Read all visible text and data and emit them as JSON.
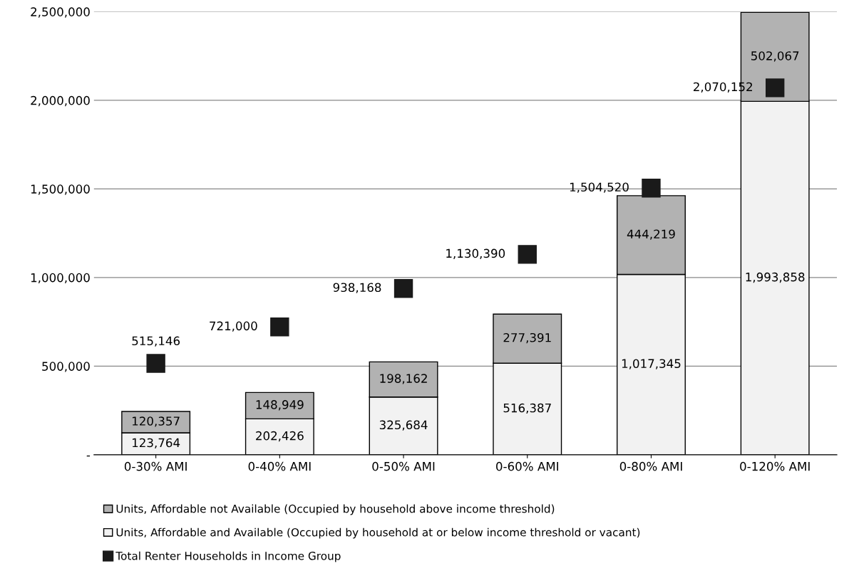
{
  "chart_data": {
    "type": "bar",
    "stacked": true,
    "categories": [
      "0-30% AMI",
      "0-40% AMI",
      "0-50% AMI",
      "0-60% AMI",
      "0-80% AMI",
      "0-120% AMI"
    ],
    "series": [
      {
        "name": "Units, Affordable and Available (Occupied by household at or below income threshold or vacant)",
        "color": "#f2f2f2",
        "values": [
          123764,
          202426,
          325684,
          516387,
          1017345,
          1993858
        ],
        "value_labels": [
          "123,764",
          "202,426",
          "325,684",
          "516,387",
          "1,017,345",
          "1,993,858"
        ]
      },
      {
        "name": "Units, Affordable not Available (Occupied by household above income threshold)",
        "color": "#b2b2b2",
        "values": [
          120357,
          148949,
          198162,
          277391,
          444219,
          502067
        ],
        "value_labels": [
          "120,357",
          "148,949",
          "198,162",
          "277,391",
          "444,219",
          "502,067"
        ]
      },
      {
        "name": "Total Renter Households in Income Group",
        "type": "scatter",
        "marker": "square",
        "color": "#1a1a1a",
        "values": [
          515146,
          721000,
          938168,
          1130390,
          1504520,
          2070152
        ],
        "value_labels": [
          "515,146",
          "721,000",
          "938,168",
          "1,130,390",
          "1,504,520",
          "2,070,152"
        ]
      }
    ],
    "ylim": [
      0,
      2500000
    ],
    "yticks": [
      {
        "value": 0,
        "label": "-"
      },
      {
        "value": 500000,
        "label": "500,000"
      },
      {
        "value": 1000000,
        "label": "1,000,000"
      },
      {
        "value": 1500000,
        "label": "1,500,000"
      },
      {
        "value": 2000000,
        "label": "2,000,000"
      },
      {
        "value": 2500000,
        "label": "2,500,000"
      }
    ],
    "grid": "y",
    "legend": "bottom"
  }
}
